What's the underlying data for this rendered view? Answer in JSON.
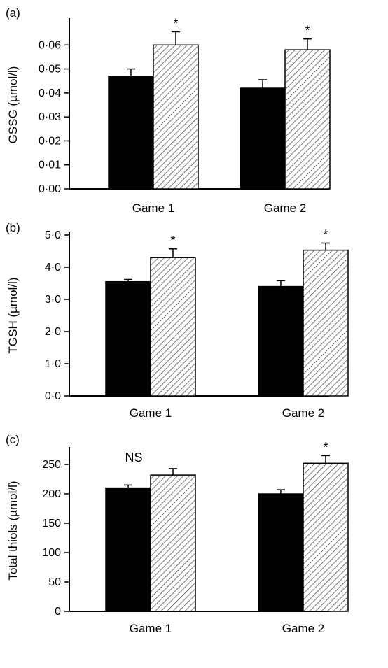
{
  "chart_data": [
    {
      "type": "bar",
      "panel_label": "(a)",
      "ylabel": "GSSG (µmol/l)",
      "categories": [
        "Game 1",
        "Game 2"
      ],
      "series": [
        {
          "color": "#000000",
          "pattern": "solid",
          "values": [
            0.047,
            0.042
          ],
          "errors": [
            0.003,
            0.0035
          ]
        },
        {
          "color": "#ffffff",
          "pattern": "hatched",
          "values": [
            0.06,
            0.058
          ],
          "errors": [
            0.0055,
            0.0045
          ]
        }
      ],
      "annotations": [
        "*",
        "*"
      ],
      "ylim": [
        0,
        0.07
      ],
      "yticks": [
        0.0,
        0.01,
        0.02,
        0.03,
        0.04,
        0.05,
        0.06
      ],
      "yticklabels": [
        "0·00",
        "0·01",
        "0·02",
        "0·03",
        "0·04",
        "0·05",
        "0·06"
      ]
    },
    {
      "type": "bar",
      "panel_label": "(b)",
      "ylabel": "TGSH (µmol/l)",
      "categories": [
        "Game 1",
        "Game 2"
      ],
      "series": [
        {
          "color": "#000000",
          "pattern": "solid",
          "values": [
            3.55,
            3.4
          ],
          "errors": [
            0.07,
            0.18
          ]
        },
        {
          "color": "#ffffff",
          "pattern": "hatched",
          "values": [
            4.3,
            4.53
          ],
          "errors": [
            0.27,
            0.22
          ]
        }
      ],
      "annotations": [
        "*",
        "*"
      ],
      "ylim": [
        0,
        5.0
      ],
      "yticks": [
        0,
        1,
        2,
        3,
        4,
        5
      ],
      "yticklabels": [
        "0·0",
        "1·0",
        "2·0",
        "3·0",
        "4·0",
        "5·0"
      ]
    },
    {
      "type": "bar",
      "panel_label": "(c)",
      "ylabel": "Total thiols (µmol/l)",
      "categories": [
        "Game 1",
        "Game 2"
      ],
      "series": [
        {
          "color": "#000000",
          "pattern": "solid",
          "values": [
            210,
            200
          ],
          "errors": [
            5,
            7
          ]
        },
        {
          "color": "#ffffff",
          "pattern": "hatched",
          "values": [
            232,
            252
          ],
          "errors": [
            11,
            13
          ]
        }
      ],
      "annotations": [
        "NS",
        "*"
      ],
      "ylim": [
        0,
        275
      ],
      "yticks": [
        0,
        50,
        100,
        150,
        200,
        250
      ],
      "yticklabels": [
        "0",
        "50",
        "100",
        "150",
        "200",
        "250"
      ]
    }
  ]
}
